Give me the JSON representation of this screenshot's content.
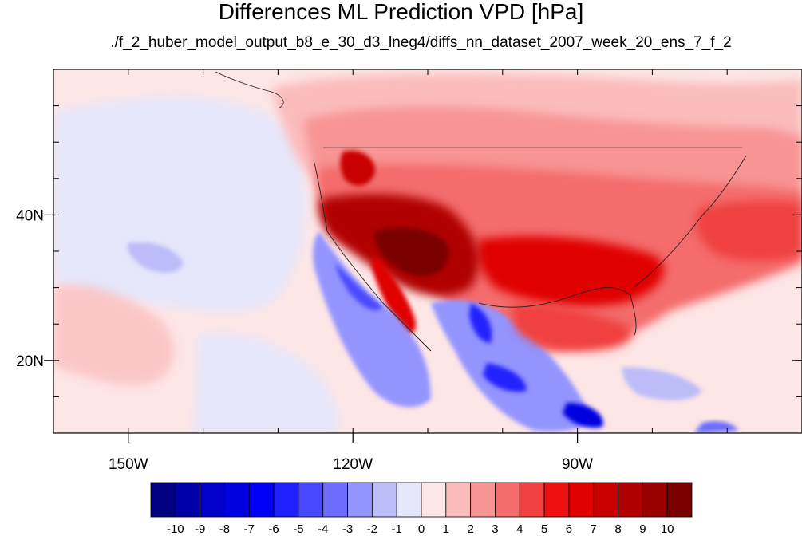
{
  "title": "Differences ML Prediction VPD [hPa]",
  "subtitle": "./f_2_huber_model_output_b8_e_30_d3_lneg4/diffs_nn_dataset_2007_week_20_ens_7_f_2",
  "map": {
    "lon_range": [
      -160,
      -60
    ],
    "lat_range": [
      10,
      60
    ],
    "lon_ticks": [
      {
        "value": -150,
        "label": "150W"
      },
      {
        "value": -120,
        "label": "120W"
      },
      {
        "value": -90,
        "label": "90W"
      }
    ],
    "lat_ticks": [
      {
        "value": 40,
        "label": "40N"
      },
      {
        "value": 20,
        "label": "20N"
      }
    ]
  },
  "colorbar": {
    "labels": [
      "-10",
      "-9",
      "-8",
      "-7",
      "-6",
      "-5",
      "-4",
      "-3",
      "-2",
      "-1",
      "0",
      "1",
      "2",
      "3",
      "4",
      "5",
      "6",
      "7",
      "8",
      "9",
      "10"
    ],
    "colors": [
      "#000080",
      "#0000a8",
      "#0000c8",
      "#0000e0",
      "#0000f8",
      "#2020ff",
      "#4848ff",
      "#6c6cff",
      "#9494ff",
      "#bcbcf8",
      "#e6e6fa",
      "#fde6e6",
      "#fbbcbc",
      "#f89494",
      "#f46c6c",
      "#f04040",
      "#f01010",
      "#e00000",
      "#c80000",
      "#b00000",
      "#980000",
      "#7a0000"
    ]
  }
}
